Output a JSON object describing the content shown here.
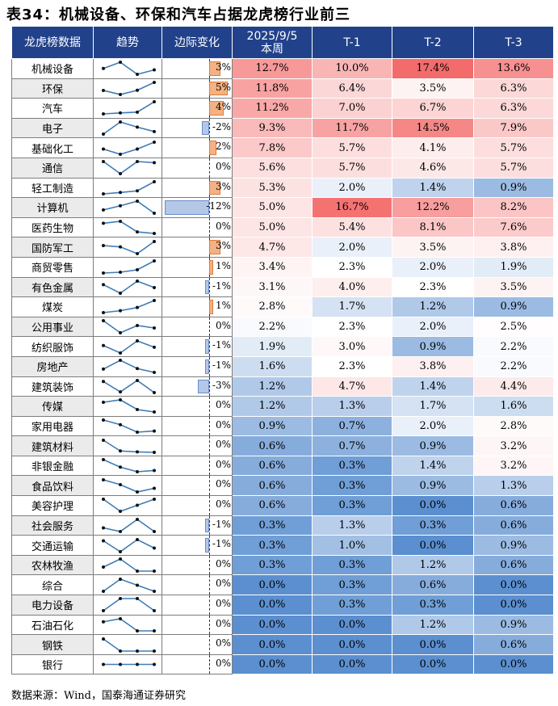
{
  "title": "表34：机械设备、环保和汽车占据龙虎榜行业前三",
  "headers": [
    "龙虎榜数据",
    "趋势",
    "边际变化",
    "2025/9/5\n本周",
    "T-1",
    "T-2",
    "T-3"
  ],
  "source": "数据来源：Wind，国泰海通证券研究",
  "rows": [
    {
      "name": "机械设备",
      "margin": 3,
      "margin_label": "3%",
      "values": [
        12.7,
        10.0,
        17.4,
        13.6
      ],
      "labels": [
        "12.7%",
        "10.0%",
        "17.4%",
        "13.6%"
      ]
    },
    {
      "name": "环保",
      "margin": 5,
      "margin_label": "5%",
      "values": [
        11.8,
        6.4,
        3.5,
        6.3
      ],
      "labels": [
        "11.8%",
        "6.4%",
        "3.5%",
        "6.3%"
      ]
    },
    {
      "name": "汽车",
      "margin": 4,
      "margin_label": "4%",
      "values": [
        11.2,
        7.0,
        6.7,
        6.3
      ],
      "labels": [
        "11.2%",
        "7.0%",
        "6.7%",
        "6.3%"
      ]
    },
    {
      "name": "电子",
      "margin": -2,
      "margin_label": "-2%",
      "values": [
        9.3,
        11.7,
        14.5,
        7.9
      ],
      "labels": [
        "9.3%",
        "11.7%",
        "14.5%",
        "7.9%"
      ]
    },
    {
      "name": "基础化工",
      "margin": 2,
      "margin_label": "2%",
      "values": [
        7.8,
        5.7,
        4.1,
        5.7
      ],
      "labels": [
        "7.8%",
        "5.7%",
        "4.1%",
        "5.7%"
      ]
    },
    {
      "name": "通信",
      "margin": 0,
      "margin_label": "0%",
      "values": [
        5.6,
        5.7,
        4.6,
        5.7
      ],
      "labels": [
        "5.6%",
        "5.7%",
        "4.6%",
        "5.7%"
      ]
    },
    {
      "name": "轻工制造",
      "margin": 3,
      "margin_label": "3%",
      "values": [
        5.3,
        2.0,
        1.4,
        0.9
      ],
      "labels": [
        "5.3%",
        "2.0%",
        "1.4%",
        "0.9%"
      ]
    },
    {
      "name": "计算机",
      "margin": -12,
      "margin_label": "-12%",
      "values": [
        5.0,
        16.7,
        12.2,
        8.2
      ],
      "labels": [
        "5.0%",
        "16.7%",
        "12.2%",
        "8.2%"
      ]
    },
    {
      "name": "医药生物",
      "margin": 0,
      "margin_label": "0%",
      "values": [
        5.0,
        5.4,
        8.1,
        7.6
      ],
      "labels": [
        "5.0%",
        "5.4%",
        "8.1%",
        "7.6%"
      ]
    },
    {
      "name": "国防军工",
      "margin": 3,
      "margin_label": "3%",
      "values": [
        4.7,
        2.0,
        3.5,
        3.8
      ],
      "labels": [
        "4.7%",
        "2.0%",
        "3.5%",
        "3.8%"
      ]
    },
    {
      "name": "商贸零售",
      "margin": 1,
      "margin_label": "1%",
      "values": [
        3.4,
        2.3,
        2.0,
        1.9
      ],
      "labels": [
        "3.4%",
        "2.3%",
        "2.0%",
        "1.9%"
      ]
    },
    {
      "name": "有色金属",
      "margin": -1,
      "margin_label": "-1%",
      "values": [
        3.1,
        4.0,
        2.3,
        3.5
      ],
      "labels": [
        "3.1%",
        "4.0%",
        "2.3%",
        "3.5%"
      ]
    },
    {
      "name": "煤炭",
      "margin": 1,
      "margin_label": "1%",
      "values": [
        2.8,
        1.7,
        1.2,
        0.9
      ],
      "labels": [
        "2.8%",
        "1.7%",
        "1.2%",
        "0.9%"
      ]
    },
    {
      "name": "公用事业",
      "margin": 0,
      "margin_label": "0%",
      "values": [
        2.2,
        2.3,
        2.0,
        2.5
      ],
      "labels": [
        "2.2%",
        "2.3%",
        "2.0%",
        "2.5%"
      ]
    },
    {
      "name": "纺织服饰",
      "margin": -1,
      "margin_label": "-1%",
      "values": [
        1.9,
        3.0,
        0.9,
        2.2
      ],
      "labels": [
        "1.9%",
        "3.0%",
        "0.9%",
        "2.2%"
      ]
    },
    {
      "name": "房地产",
      "margin": -1,
      "margin_label": "-1%",
      "values": [
        1.6,
        2.3,
        3.8,
        2.2
      ],
      "labels": [
        "1.6%",
        "2.3%",
        "3.8%",
        "2.2%"
      ]
    },
    {
      "name": "建筑装饰",
      "margin": -3,
      "margin_label": "-3%",
      "values": [
        1.2,
        4.7,
        1.4,
        4.4
      ],
      "labels": [
        "1.2%",
        "4.7%",
        "1.4%",
        "4.4%"
      ]
    },
    {
      "name": "传媒",
      "margin": 0,
      "margin_label": "0%",
      "values": [
        1.2,
        1.3,
        1.7,
        1.6
      ],
      "labels": [
        "1.2%",
        "1.3%",
        "1.7%",
        "1.6%"
      ]
    },
    {
      "name": "家用电器",
      "margin": 0,
      "margin_label": "0%",
      "values": [
        0.9,
        0.7,
        2.0,
        2.8
      ],
      "labels": [
        "0.9%",
        "0.7%",
        "2.0%",
        "2.8%"
      ]
    },
    {
      "name": "建筑材料",
      "margin": 0,
      "margin_label": "0%",
      "values": [
        0.6,
        0.7,
        0.9,
        3.2
      ],
      "labels": [
        "0.6%",
        "0.7%",
        "0.9%",
        "3.2%"
      ]
    },
    {
      "name": "非银金融",
      "margin": 0,
      "margin_label": "0%",
      "values": [
        0.6,
        0.3,
        1.4,
        3.2
      ],
      "labels": [
        "0.6%",
        "0.3%",
        "1.4%",
        "3.2%"
      ]
    },
    {
      "name": "食品饮料",
      "margin": 0,
      "margin_label": "0%",
      "values": [
        0.6,
        0.3,
        0.9,
        1.3
      ],
      "labels": [
        "0.6%",
        "0.3%",
        "0.9%",
        "1.3%"
      ]
    },
    {
      "name": "美容护理",
      "margin": 0,
      "margin_label": "0%",
      "values": [
        0.6,
        0.3,
        0.0,
        0.6
      ],
      "labels": [
        "0.6%",
        "0.3%",
        "0.0%",
        "0.6%"
      ]
    },
    {
      "name": "社会服务",
      "margin": -1,
      "margin_label": "-1%",
      "values": [
        0.3,
        1.3,
        0.3,
        0.6
      ],
      "labels": [
        "0.3%",
        "1.3%",
        "0.3%",
        "0.6%"
      ]
    },
    {
      "name": "交通运输",
      "margin": -1,
      "margin_label": "-1%",
      "values": [
        0.3,
        1.0,
        0.0,
        0.9
      ],
      "labels": [
        "0.3%",
        "1.0%",
        "0.0%",
        "0.9%"
      ]
    },
    {
      "name": "农林牧渔",
      "margin": 0,
      "margin_label": "0%",
      "values": [
        0.3,
        0.3,
        1.2,
        0.6
      ],
      "labels": [
        "0.3%",
        "0.3%",
        "1.2%",
        "0.6%"
      ]
    },
    {
      "name": "综合",
      "margin": 0,
      "margin_label": "0%",
      "values": [
        0.0,
        0.3,
        0.6,
        0.0
      ],
      "labels": [
        "0.0%",
        "0.3%",
        "0.6%",
        "0.0%"
      ]
    },
    {
      "name": "电力设备",
      "margin": 0,
      "margin_label": "0%",
      "values": [
        0.0,
        0.3,
        0.3,
        0.0
      ],
      "labels": [
        "0.0%",
        "0.3%",
        "0.3%",
        "0.0%"
      ]
    },
    {
      "name": "石油石化",
      "margin": 0,
      "margin_label": "0%",
      "values": [
        0.0,
        0.0,
        1.2,
        0.9
      ],
      "labels": [
        "0.0%",
        "0.0%",
        "1.2%",
        "0.9%"
      ]
    },
    {
      "name": "钢铁",
      "margin": 0,
      "margin_label": "0%",
      "values": [
        0.0,
        0.0,
        0.0,
        0.6
      ],
      "labels": [
        "0.0%",
        "0.0%",
        "0.0%",
        "0.6%"
      ]
    },
    {
      "name": "银行",
      "margin": 0,
      "margin_label": "0%",
      "values": [
        0.0,
        0.0,
        0.0,
        0.0
      ],
      "labels": [
        "0.0%",
        "0.0%",
        "0.0%",
        "0.0%"
      ]
    }
  ],
  "colors": {
    "header": "#21418a",
    "high": "#f46b6b",
    "mid": "#ffffff",
    "low": "#5b8fd0",
    "bar_pos": "#f4b183",
    "bar_neg": "#b4c7e7"
  }
}
